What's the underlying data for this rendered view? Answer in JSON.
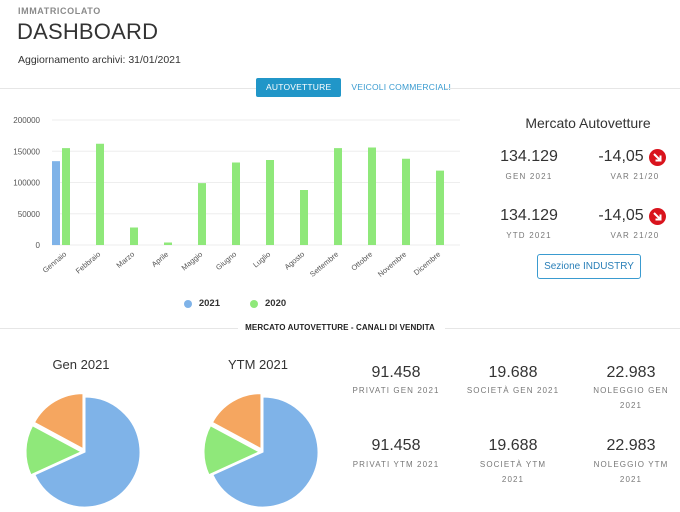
{
  "header": {
    "kicker": "IMMATRICOLATO",
    "title": "DASHBOARD",
    "updated_label": "Aggiornamento archivi:",
    "updated_value": "31/01/2021"
  },
  "tabs": [
    {
      "label": "AUTOVETTURE",
      "active": true
    },
    {
      "label": "VEICOLI COMMERCIALI",
      "active": false
    }
  ],
  "colors": {
    "series_2021": "#7fb3e8",
    "series_2020": "#8fe87a",
    "accent": "#2196c8",
    "down": "#d9141d",
    "pie_blue": "#7fb3e8",
    "pie_green": "#8fe87a",
    "pie_orange": "#f5a660"
  },
  "chart_data": {
    "type": "bar",
    "categories": [
      "Gennaio",
      "Febbraio",
      "Marzo",
      "Aprile",
      "Maggio",
      "Giugno",
      "Luglio",
      "Agosto",
      "Settembre",
      "Ottobre",
      "Novembre",
      "Dicembre"
    ],
    "series": [
      {
        "name": "2021",
        "values": [
          134129,
          null,
          null,
          null,
          null,
          null,
          null,
          null,
          null,
          null,
          null,
          null
        ]
      },
      {
        "name": "2020",
        "values": [
          155000,
          162000,
          28000,
          4000,
          99000,
          132000,
          136000,
          88000,
          155000,
          156000,
          138000,
          119000
        ]
      }
    ],
    "yticks": [
      "200000",
      "150000",
      "100000",
      "50000",
      "0"
    ],
    "ylim": [
      0,
      200000
    ],
    "legend": "bottom"
  },
  "market": {
    "title": "Mercato Autovetture",
    "rows": [
      {
        "value": "134.129",
        "label": "GEN 2021",
        "var": "-14,05",
        "var_label": "VAR 21/20"
      },
      {
        "value": "134.129",
        "label": "YTD 2021",
        "var": "-14,05",
        "var_label": "VAR 21/20"
      }
    ],
    "button": "Sezione INDUSTRY"
  },
  "channels": {
    "title": "MERCATO AUTOVETTURE - CANALI DI VENDITA",
    "pies": [
      {
        "title": "Gen 2021",
        "slices": [
          {
            "name": "Privati",
            "value": 91458
          },
          {
            "name": "Società",
            "value": 19688
          },
          {
            "name": "Noleggio",
            "value": 22983
          }
        ]
      },
      {
        "title": "YTM 2021",
        "slices": [
          {
            "name": "Privati",
            "value": 91458
          },
          {
            "name": "Società",
            "value": 19688
          },
          {
            "name": "Noleggio",
            "value": 22983
          }
        ]
      }
    ],
    "stats_gen": [
      {
        "value": "91.458",
        "label": "PRIVATI GEN 2021"
      },
      {
        "value": "19.688",
        "label": "SOCIETÀ GEN 2021"
      },
      {
        "value": "22.983",
        "label": "NOLEGGIO GEN 2021"
      }
    ],
    "stats_ytm": [
      {
        "value": "91.458",
        "label": "PRIVATI YTM 2021"
      },
      {
        "value": "19.688",
        "label": "SOCIETÀ YTM 2021"
      },
      {
        "value": "22.983",
        "label": "NOLEGGIO YTM 2021"
      }
    ]
  }
}
